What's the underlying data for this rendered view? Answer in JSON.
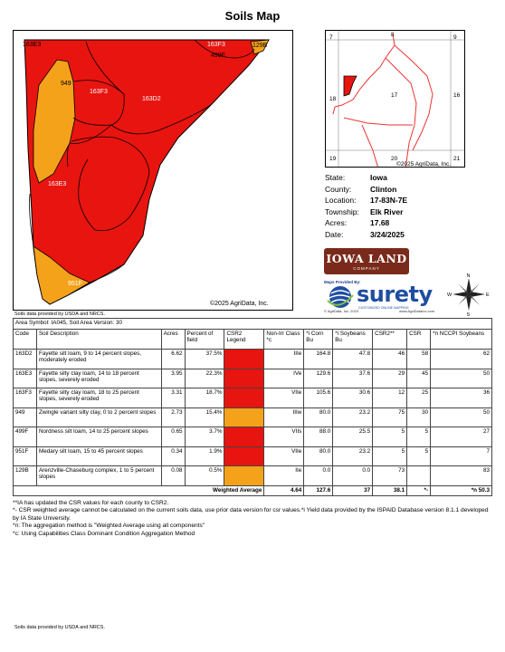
{
  "title": "Soils Map",
  "main_map": {
    "labels": [
      "163E3",
      "163F3",
      "499F",
      "129B",
      "949",
      "163F3",
      "163D2",
      "163E3",
      "951F"
    ],
    "copyright": "©2025 AgriData, Inc.",
    "colors": {
      "red": "#e8140f",
      "orange": "#f5a21b"
    }
  },
  "credit_top": "Soils data provided by USDA and NRCS.",
  "location_map": {
    "sections": [
      "7",
      "8",
      "9",
      "18",
      "17",
      "16",
      "19",
      "20",
      "21"
    ],
    "copyright": "©2025 AgriData, Inc."
  },
  "info": [
    {
      "key": "State:",
      "value": "Iowa"
    },
    {
      "key": "County:",
      "value": "Clinton"
    },
    {
      "key": "Location:",
      "value": "17-83N-7E"
    },
    {
      "key": "Township:",
      "value": "Elk River"
    },
    {
      "key": "Acres:",
      "value": "17.68"
    },
    {
      "key": "Date:",
      "value": "3/24/2025"
    }
  ],
  "logo_iowa": {
    "name": "IOWA LAND",
    "sub": "COMPANY"
  },
  "surety": {
    "maps_by": "Maps Provided By:",
    "word": "surety",
    "tagline": "CUSTOMIZED ONLINE MAPPING",
    "copyright": "© AgriData, Inc. 2023",
    "website": "www.AgriDataInc.com"
  },
  "compass": {
    "n": "N",
    "s": "S",
    "e": "E",
    "w": "W"
  },
  "table": {
    "area_symbol": "Area Symbol: IA045, Soil Area Version: 30",
    "headers": [
      "Code",
      "Soil Description",
      "Acres",
      "Percent of field",
      "CSR2 Legend",
      "Non-Irr Class *c",
      "*i Corn Bu",
      "*i Soybeans Bu",
      "CSR2**",
      "CSR",
      "*n NCCPI Soybeans"
    ],
    "rows": [
      {
        "code": "163D2",
        "desc": "Fayette silt loam, 9 to 14 percent slopes, moderately eroded",
        "acres": "6.62",
        "pct": "37.5%",
        "legend": "#e8140f",
        "cls": "IIIe",
        "corn": "164.8",
        "soy": "47.8",
        "csr2": "46",
        "csr": "58",
        "nccpi": "62"
      },
      {
        "code": "163E3",
        "desc": "Fayette silty clay loam, 14 to 18 percent slopes, severely eroded",
        "acres": "3.95",
        "pct": "22.3%",
        "legend": "#e8140f",
        "cls": "IVe",
        "corn": "129.6",
        "soy": "37.6",
        "csr2": "29",
        "csr": "45",
        "nccpi": "50"
      },
      {
        "code": "163F3",
        "desc": "Fayette silty clay loam, 18 to 25 percent slopes, severely eroded",
        "acres": "3.31",
        "pct": "18.7%",
        "legend": "#e8140f",
        "cls": "VIIe",
        "corn": "105.6",
        "soy": "30.6",
        "csr2": "12",
        "csr": "25",
        "nccpi": "36"
      },
      {
        "code": "949",
        "desc": "Zwingle variant silty clay, 0 to 2 percent slopes",
        "acres": "2.73",
        "pct": "15.4%",
        "legend": "#f5a21b",
        "cls": "IIIw",
        "corn": "80.0",
        "soy": "23.2",
        "csr2": "75",
        "csr": "30",
        "nccpi": "50"
      },
      {
        "code": "499F",
        "desc": "Nordness silt loam, 14 to 25 percent slopes",
        "acres": "0.65",
        "pct": "3.7%",
        "legend": "#e8140f",
        "cls": "VIIs",
        "corn": "88.0",
        "soy": "25.5",
        "csr2": "5",
        "csr": "5",
        "nccpi": "27"
      },
      {
        "code": "951F",
        "desc": "Medary silt loam, 15 to 45 percent slopes",
        "acres": "0.34",
        "pct": "1.9%",
        "legend": "#e8140f",
        "cls": "VIIe",
        "corn": "80.0",
        "soy": "23.2",
        "csr2": "5",
        "csr": "5",
        "nccpi": "7"
      },
      {
        "code": "129B",
        "desc": "Arenzville-Chaseburg complex, 1 to 5 percent slopes",
        "acres": "0.08",
        "pct": "0.5%",
        "legend": "#f5a21b",
        "cls": "IIe",
        "corn": "0.0",
        "soy": "0.0",
        "csr2": "73",
        "csr": "",
        "nccpi": "83"
      }
    ],
    "weighted": {
      "label": "Weighted Average",
      "cls": "4.64",
      "corn": "127.6",
      "soy": "37",
      "csr2": "38.1",
      "csr": "*-",
      "nccpi": "*n 50.3"
    }
  },
  "notes": [
    "**IA has updated the CSR values for each county to CSR2.",
    "*- CSR weighted average cannot be calculated on the current soils data, use prior data version for csr values.*i Yield data provided by the ISPAID Database version 8.1.1 developed by IA State University.",
    "*n: The aggregation method is \"Weighted Average using all components\"",
    "*c: Using Capabilities Class Dominant Condition Aggregation Method"
  ],
  "credit_bottom": "Soils data provided by USDA and NRCS."
}
